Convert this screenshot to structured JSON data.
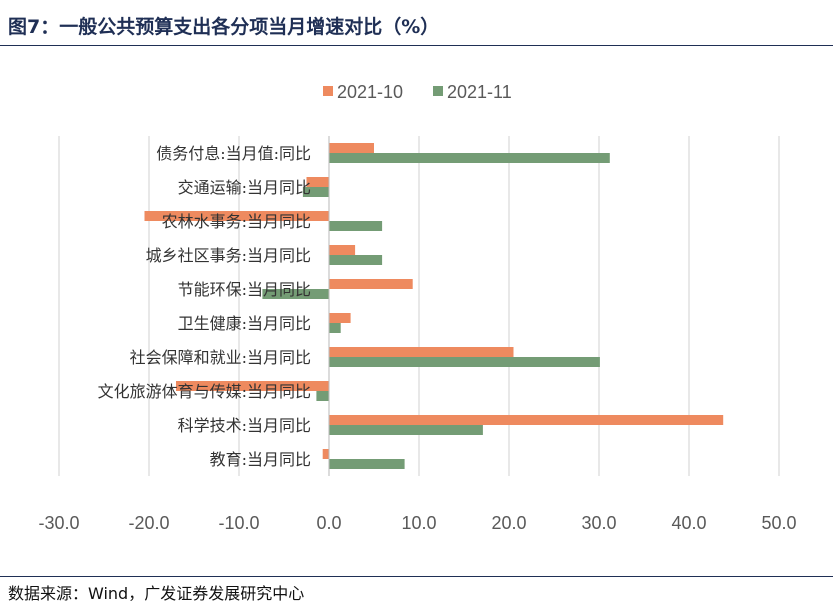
{
  "header": {
    "title": "图7：一般公共预算支出各分项当月增速对比（%）"
  },
  "footer": {
    "source": "数据来源：Wind，广发证券发展研究中心"
  },
  "colors": {
    "series_1": "#EE8A5F",
    "series_2": "#749C75",
    "grid": "#D9D9D9"
  },
  "chart_data": {
    "type": "bar",
    "orientation": "horizontal",
    "categories": [
      "债务付息:当月值:同比",
      "交通运输:当月同比",
      "农林水事务:当月同比",
      "城乡社区事务:当月同比",
      "节能环保:当月同比",
      "卫生健康:当月同比",
      "社会保障和就业:当月同比",
      "文化旅游体育与传媒:当月同比",
      "科学技术:当月同比",
      "教育:当月同比"
    ],
    "series": [
      {
        "name": "2021-10",
        "values": [
          5.0,
          -2.5,
          -20.5,
          2.9,
          9.3,
          2.4,
          20.5,
          -17.0,
          43.8,
          -0.7
        ]
      },
      {
        "name": "2021-11",
        "values": [
          31.2,
          -2.9,
          5.9,
          5.9,
          -7.4,
          1.3,
          30.1,
          -1.4,
          17.1,
          8.4
        ]
      }
    ],
    "xlim": [
      -30,
      50
    ],
    "xticks": [
      "-30.0",
      "-20.0",
      "-10.0",
      "0.0",
      "10.0",
      "20.0",
      "30.0",
      "40.0",
      "50.0"
    ],
    "grid": true,
    "legend": "top-center"
  }
}
